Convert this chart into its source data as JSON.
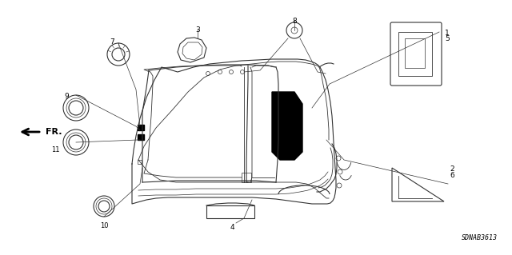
{
  "diagram_id": "SDNAB3613",
  "background_color": "#ffffff",
  "line_color": "#333333",
  "figsize": [
    6.4,
    3.19
  ],
  "dpi": 100
}
